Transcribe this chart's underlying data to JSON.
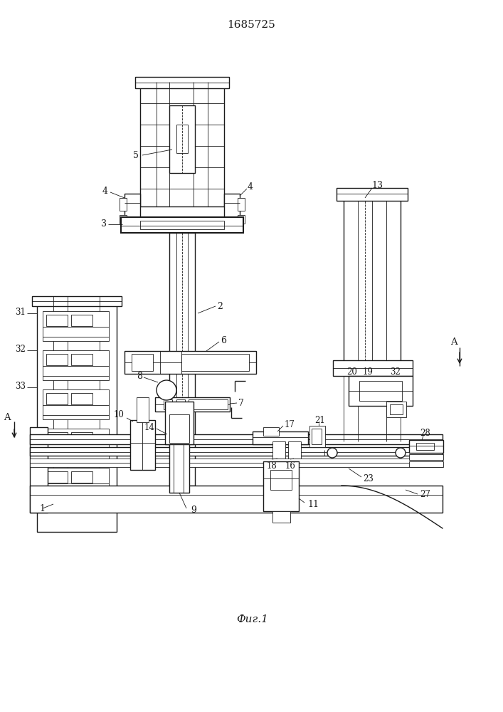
{
  "title": "1685725",
  "caption": "Фиг.1",
  "bg": "#ffffff",
  "lc": "#1a1a1a",
  "lw1": 0.6,
  "lw2": 1.0,
  "lw3": 1.5
}
